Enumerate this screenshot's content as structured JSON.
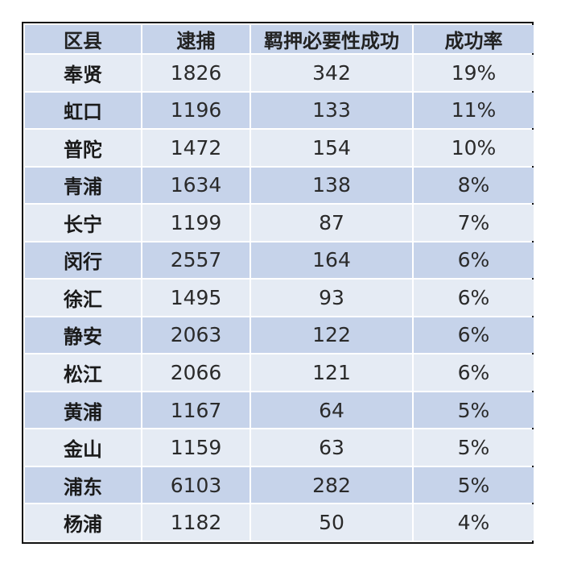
{
  "colors": {
    "header_bg": "#c6d3ea",
    "row_light": "#e5ebf4",
    "row_dark": "#c6d3ea",
    "border": "#111111"
  },
  "table": {
    "headers": [
      "区县",
      "逮捕",
      "羁押必要性成功",
      "成功率"
    ],
    "rows": [
      [
        "奉贤",
        "1826",
        "342",
        "19%"
      ],
      [
        "虹口",
        "1196",
        "133",
        "11%"
      ],
      [
        "普陀",
        "1472",
        "154",
        "10%"
      ],
      [
        "青浦",
        "1634",
        "138",
        "8%"
      ],
      [
        "长宁",
        "1199",
        "87",
        "7%"
      ],
      [
        "闵行",
        "2557",
        "164",
        "6%"
      ],
      [
        "徐汇",
        "1495",
        "93",
        "6%"
      ],
      [
        "静安",
        "2063",
        "122",
        "6%"
      ],
      [
        "松江",
        "2066",
        "121",
        "6%"
      ],
      [
        "黄浦",
        "1167",
        "64",
        "5%"
      ],
      [
        "金山",
        "1159",
        "63",
        "5%"
      ],
      [
        "浦东",
        "6103",
        "282",
        "5%"
      ],
      [
        "杨浦",
        "1182",
        "50",
        "4%"
      ]
    ]
  }
}
